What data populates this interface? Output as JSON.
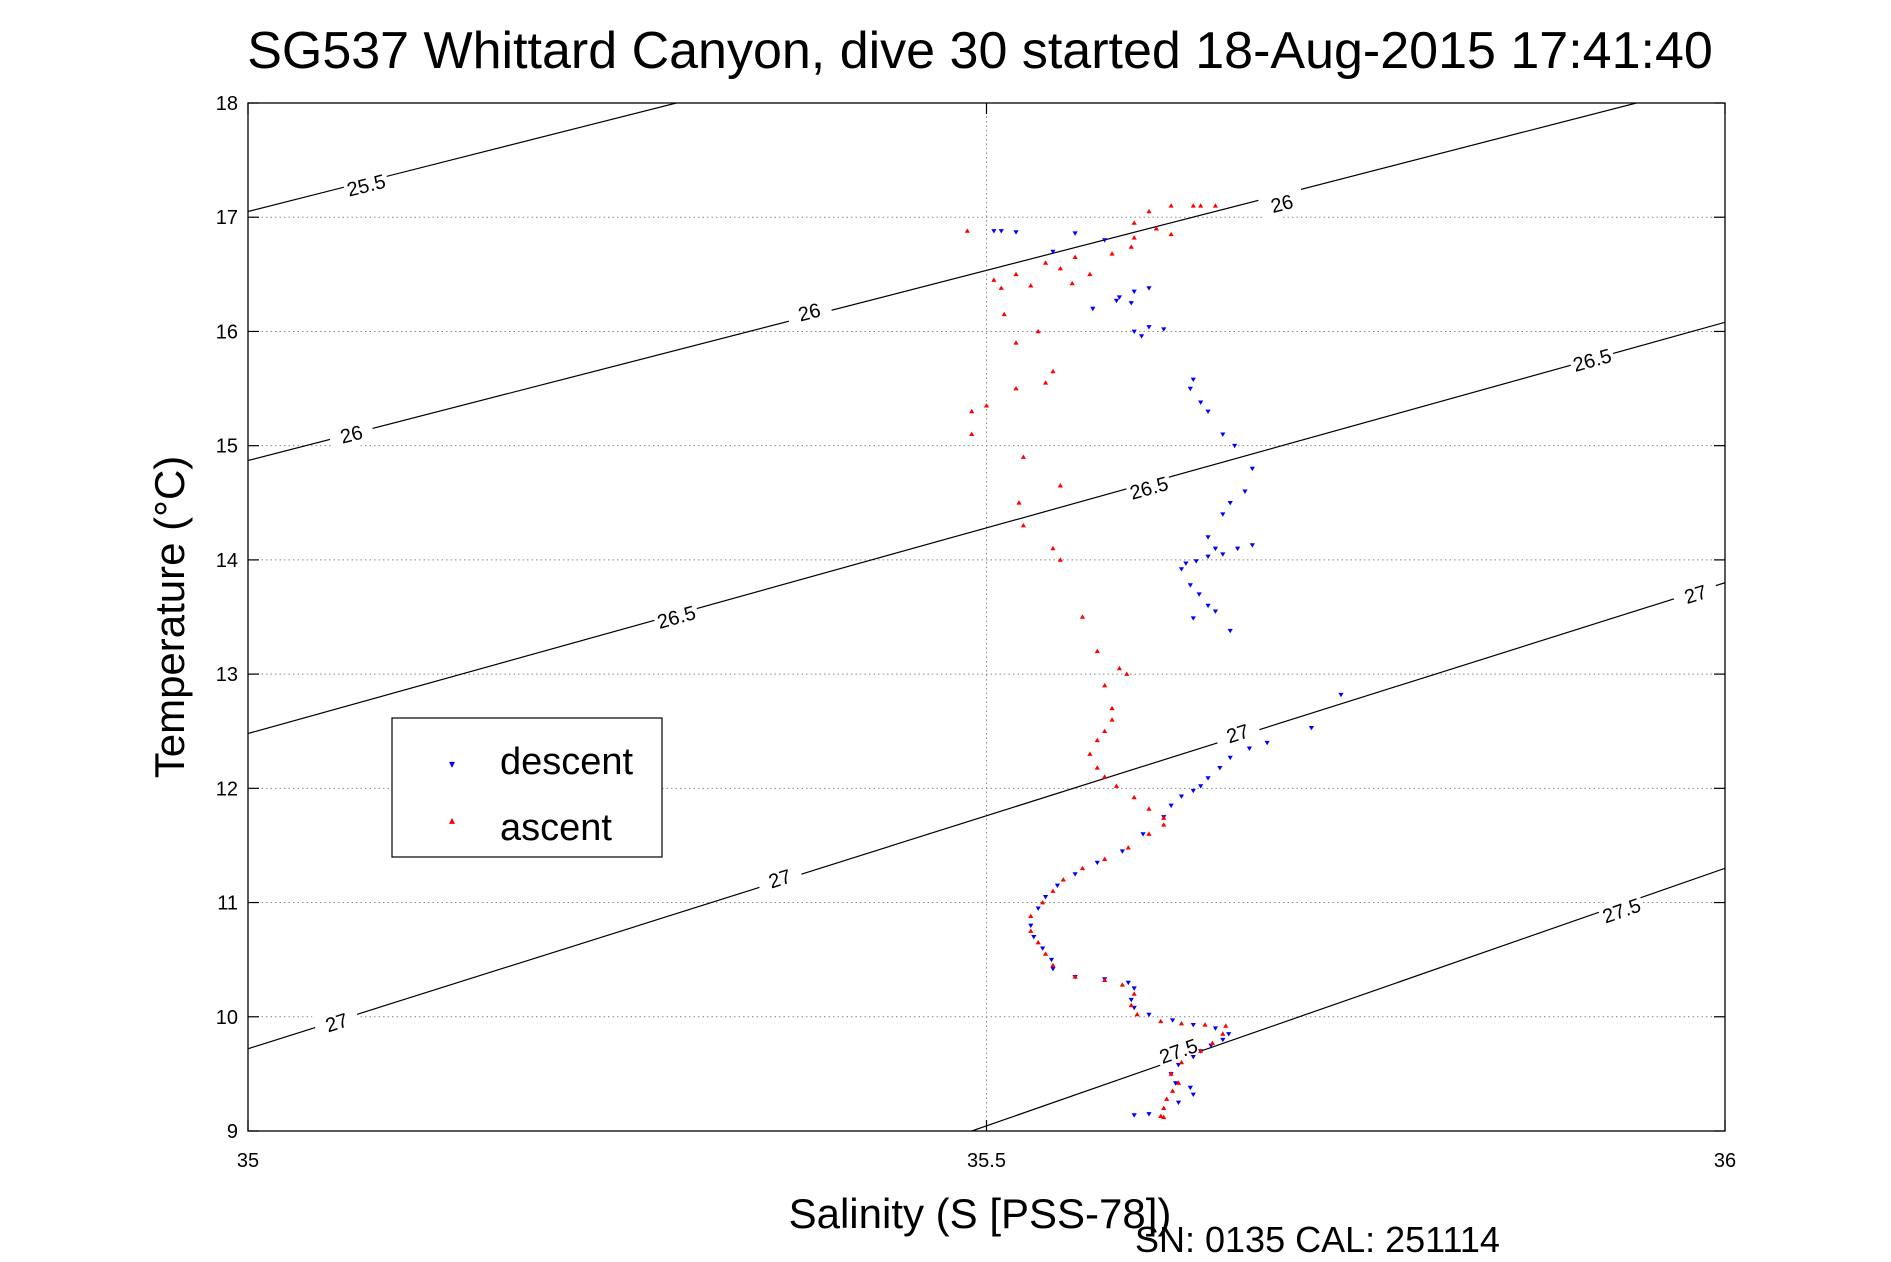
{
  "chart_data": {
    "type": "scatter",
    "title": "SG537 Whittard Canyon, dive 30 started 18-Aug-2015 17:41:40",
    "xlabel": "Salinity (S [PSS-78])",
    "ylabel": "Temperature (°C)",
    "footer": "SN: 0135  CAL: 251114",
    "xlim": [
      35,
      36
    ],
    "ylim": [
      9,
      18
    ],
    "x_ticks": [
      "35",
      "35.5",
      "36"
    ],
    "y_ticks": [
      "9",
      "10",
      "11",
      "12",
      "13",
      "14",
      "15",
      "16",
      "17",
      "18"
    ],
    "grid": "dotted",
    "legend_position": "left",
    "colors": {
      "descent": "#0000ff",
      "ascent": "#ff0000",
      "contour": "#000000"
    },
    "density_contours": [
      {
        "label": "25.5",
        "points": [
          [
            35.0,
            17.05
          ],
          [
            35.29,
            18.0
          ]
        ],
        "labels": [
          [
            35.08,
            17.28
          ]
        ]
      },
      {
        "label": "26",
        "points": [
          [
            35.0,
            14.87
          ],
          [
            35.94,
            18.0
          ]
        ],
        "labels": [
          [
            35.07,
            15.1
          ],
          [
            35.38,
            16.17
          ],
          [
            35.7,
            17.12
          ]
        ]
      },
      {
        "label": "26.5",
        "points": [
          [
            35.0,
            12.48
          ],
          [
            36.0,
            16.08
          ]
        ],
        "labels": [
          [
            35.29,
            13.5
          ],
          [
            35.61,
            14.63
          ],
          [
            35.91,
            15.75
          ]
        ]
      },
      {
        "label": "27",
        "points": [
          [
            35.0,
            9.72
          ],
          [
            36.0,
            13.8
          ]
        ],
        "labels": [
          [
            35.06,
            9.95
          ],
          [
            35.36,
            11.21
          ],
          [
            35.67,
            12.48
          ],
          [
            35.98,
            13.7
          ]
        ]
      },
      {
        "label": "27.5",
        "points": [
          [
            35.49,
            9.0
          ],
          [
            36.0,
            11.3
          ]
        ],
        "labels": [
          [
            35.63,
            9.7
          ],
          [
            35.93,
            10.93
          ]
        ]
      }
    ],
    "series": [
      {
        "name": "descent",
        "marker": "▾",
        "points": [
          [
            35.505,
            16.88
          ],
          [
            35.51,
            16.88
          ],
          [
            35.52,
            16.87
          ],
          [
            35.56,
            16.86
          ],
          [
            35.58,
            16.8
          ],
          [
            35.545,
            16.7
          ],
          [
            35.59,
            16.3
          ],
          [
            35.6,
            16.35
          ],
          [
            35.61,
            16.38
          ],
          [
            35.572,
            16.2
          ],
          [
            35.588,
            16.27
          ],
          [
            35.598,
            16.25
          ],
          [
            35.6,
            16.0
          ],
          [
            35.605,
            15.96
          ],
          [
            35.61,
            16.04
          ],
          [
            35.62,
            16.02
          ],
          [
            35.64,
            15.58
          ],
          [
            35.638,
            15.5
          ],
          [
            35.645,
            15.38
          ],
          [
            35.65,
            15.3
          ],
          [
            35.66,
            15.1
          ],
          [
            35.668,
            15.0
          ],
          [
            35.68,
            14.8
          ],
          [
            35.675,
            14.6
          ],
          [
            35.665,
            14.5
          ],
          [
            35.66,
            14.4
          ],
          [
            35.65,
            14.2
          ],
          [
            35.655,
            14.1
          ],
          [
            35.642,
            13.99
          ],
          [
            35.635,
            13.97
          ],
          [
            35.65,
            14.03
          ],
          [
            35.66,
            14.05
          ],
          [
            35.67,
            14.1
          ],
          [
            35.68,
            14.13
          ],
          [
            35.632,
            13.92
          ],
          [
            35.638,
            13.78
          ],
          [
            35.644,
            13.7
          ],
          [
            35.65,
            13.6
          ],
          [
            35.655,
            13.55
          ],
          [
            35.64,
            13.49
          ],
          [
            35.665,
            13.38
          ],
          [
            35.74,
            12.82
          ],
          [
            35.72,
            12.53
          ],
          [
            35.69,
            12.4
          ],
          [
            35.678,
            12.35
          ],
          [
            35.665,
            12.27
          ],
          [
            35.658,
            12.18
          ],
          [
            35.65,
            12.09
          ],
          [
            35.645,
            12.02
          ],
          [
            35.64,
            11.98
          ],
          [
            35.632,
            11.93
          ],
          [
            35.625,
            11.85
          ],
          [
            35.62,
            11.75
          ],
          [
            35.606,
            11.6
          ],
          [
            35.592,
            11.45
          ],
          [
            35.575,
            11.35
          ],
          [
            35.56,
            11.25
          ],
          [
            35.548,
            11.15
          ],
          [
            35.54,
            11.05
          ],
          [
            35.535,
            10.95
          ],
          [
            35.53,
            10.8
          ],
          [
            35.532,
            10.7
          ],
          [
            35.538,
            10.6
          ],
          [
            35.544,
            10.5
          ],
          [
            35.545,
            10.42
          ],
          [
            35.56,
            10.35
          ],
          [
            35.58,
            10.33
          ],
          [
            35.596,
            10.3
          ],
          [
            35.6,
            10.25
          ],
          [
            35.598,
            10.15
          ],
          [
            35.6,
            10.08
          ],
          [
            35.61,
            10.02
          ],
          [
            35.626,
            9.97
          ],
          [
            35.64,
            9.93
          ],
          [
            35.655,
            9.9
          ],
          [
            35.664,
            9.85
          ],
          [
            35.66,
            9.8
          ],
          [
            35.652,
            9.75
          ],
          [
            35.645,
            9.7
          ],
          [
            35.64,
            9.65
          ],
          [
            35.63,
            9.58
          ],
          [
            35.625,
            9.5
          ],
          [
            35.628,
            9.42
          ],
          [
            35.638,
            9.38
          ],
          [
            35.64,
            9.32
          ],
          [
            35.63,
            9.25
          ],
          [
            35.61,
            9.15
          ],
          [
            35.6,
            9.14
          ]
        ]
      },
      {
        "name": "ascent",
        "marker": "▴",
        "points": [
          [
            35.487,
            16.88
          ],
          [
            35.625,
            17.1
          ],
          [
            35.64,
            17.1
          ],
          [
            35.645,
            17.1
          ],
          [
            35.655,
            17.1
          ],
          [
            35.61,
            17.05
          ],
          [
            35.6,
            16.95
          ],
          [
            35.615,
            16.9
          ],
          [
            35.625,
            16.85
          ],
          [
            35.6,
            16.82
          ],
          [
            35.598,
            16.74
          ],
          [
            35.585,
            16.68
          ],
          [
            35.56,
            16.65
          ],
          [
            35.54,
            16.6
          ],
          [
            35.55,
            16.55
          ],
          [
            35.52,
            16.5
          ],
          [
            35.505,
            16.45
          ],
          [
            35.51,
            16.38
          ],
          [
            35.53,
            16.4
          ],
          [
            35.57,
            16.5
          ],
          [
            35.558,
            16.42
          ],
          [
            35.512,
            16.15
          ],
          [
            35.535,
            16.0
          ],
          [
            35.52,
            15.9
          ],
          [
            35.545,
            15.65
          ],
          [
            35.54,
            15.55
          ],
          [
            35.52,
            15.5
          ],
          [
            35.5,
            15.35
          ],
          [
            35.49,
            15.3
          ],
          [
            35.49,
            15.1
          ],
          [
            35.525,
            14.9
          ],
          [
            35.55,
            14.65
          ],
          [
            35.522,
            14.5
          ],
          [
            35.525,
            14.3
          ],
          [
            35.545,
            14.1
          ],
          [
            35.55,
            14.0
          ],
          [
            35.565,
            13.5
          ],
          [
            35.575,
            13.2
          ],
          [
            35.59,
            13.05
          ],
          [
            35.595,
            13.0
          ],
          [
            35.58,
            12.9
          ],
          [
            35.585,
            12.7
          ],
          [
            35.585,
            12.6
          ],
          [
            35.58,
            12.5
          ],
          [
            35.575,
            12.42
          ],
          [
            35.57,
            12.3
          ],
          [
            35.575,
            12.18
          ],
          [
            35.58,
            12.1
          ],
          [
            35.588,
            12.02
          ],
          [
            35.6,
            11.92
          ],
          [
            35.61,
            11.82
          ],
          [
            35.62,
            11.74
          ],
          [
            35.62,
            11.68
          ],
          [
            35.61,
            11.6
          ],
          [
            35.596,
            11.48
          ],
          [
            35.58,
            11.38
          ],
          [
            35.565,
            11.3
          ],
          [
            35.552,
            11.2
          ],
          [
            35.545,
            11.1
          ],
          [
            35.538,
            11.0
          ],
          [
            35.53,
            10.88
          ],
          [
            35.53,
            10.75
          ],
          [
            35.535,
            10.65
          ],
          [
            35.54,
            10.55
          ],
          [
            35.545,
            10.45
          ],
          [
            35.56,
            10.35
          ],
          [
            35.58,
            10.32
          ],
          [
            35.592,
            10.28
          ],
          [
            35.6,
            10.2
          ],
          [
            35.598,
            10.1
          ],
          [
            35.602,
            10.02
          ],
          [
            35.618,
            9.96
          ],
          [
            35.632,
            9.94
          ],
          [
            35.648,
            9.93
          ],
          [
            35.662,
            9.92
          ],
          [
            35.66,
            9.85
          ],
          [
            35.653,
            9.77
          ],
          [
            35.645,
            9.7
          ],
          [
            35.632,
            9.6
          ],
          [
            35.625,
            9.5
          ],
          [
            35.63,
            9.42
          ],
          [
            35.626,
            9.35
          ],
          [
            35.622,
            9.28
          ],
          [
            35.62,
            9.2
          ],
          [
            35.618,
            9.13
          ],
          [
            35.62,
            9.12
          ]
        ]
      }
    ]
  }
}
